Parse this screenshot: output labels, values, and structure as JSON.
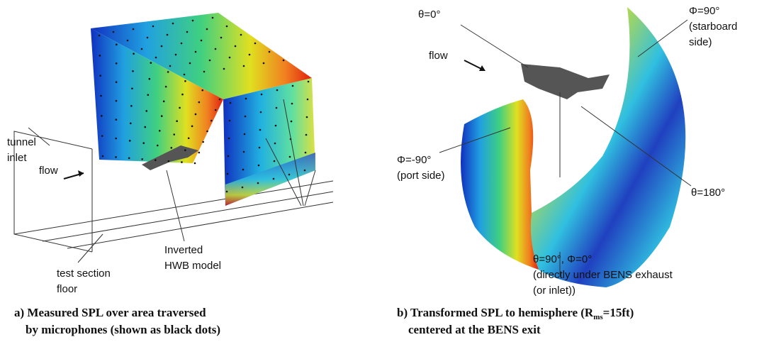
{
  "panel_a": {
    "labels": {
      "tunnel_inlet": [
        "tunnel",
        "inlet"
      ],
      "flow": "flow",
      "floor": [
        "test section",
        "floor"
      ],
      "model": [
        "Inverted",
        "HWB model"
      ]
    },
    "caption": [
      "a) Measured SPL over area traversed",
      "by microphones (shown as black dots)"
    ]
  },
  "panel_b": {
    "labels": {
      "theta0": "θ=0°",
      "flow": "flow",
      "phi90": [
        "Φ=90°",
        "(starboard",
        "side)"
      ],
      "phim90": [
        "Φ=-90°",
        "(port side)"
      ],
      "theta180": "θ=180°",
      "bottom": [
        "θ=90°, Φ=0°",
        "(directly under BENS exhaust",
        "(or inlet))"
      ]
    },
    "caption": {
      "line1": [
        "b) Transformed SPL to hemisphere (R",
        "ms",
        "=15ft)"
      ],
      "line2": "centered at the BENS exit"
    }
  }
}
